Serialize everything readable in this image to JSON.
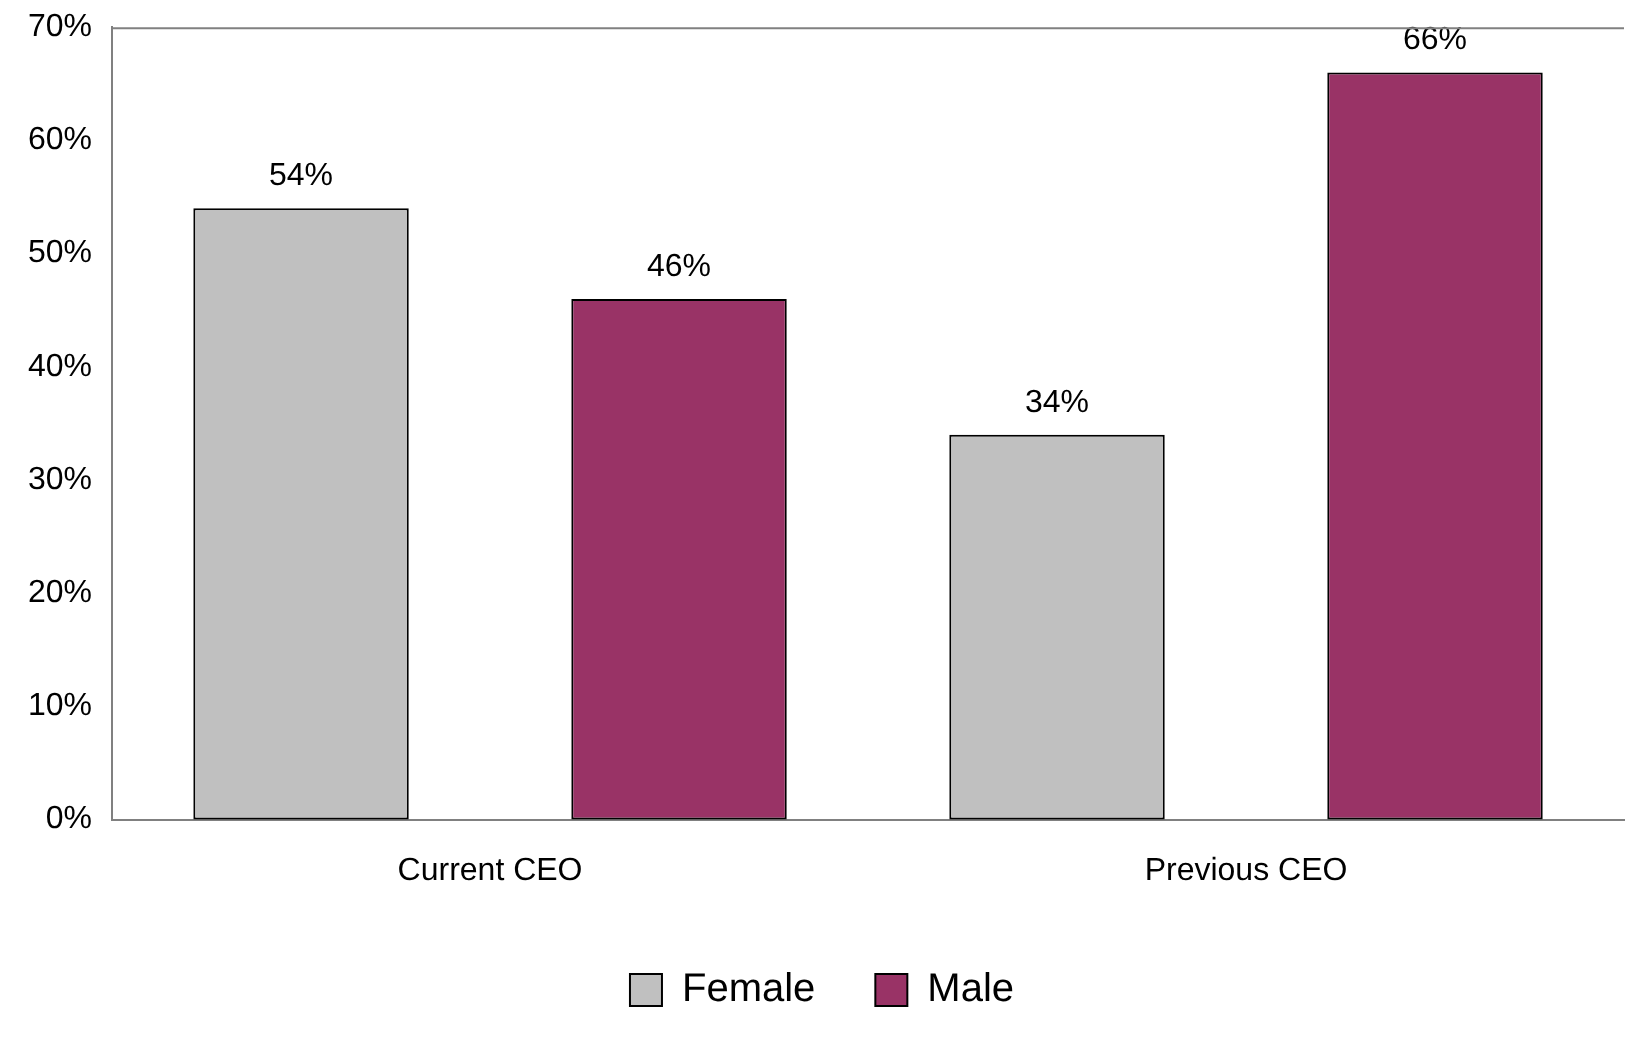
{
  "chart_data": {
    "type": "bar",
    "categories": [
      "Current CEO",
      "Previous CEO"
    ],
    "series": [
      {
        "name": "Female",
        "color": "#c0c0c0",
        "values": [
          54,
          34
        ],
        "value_labels": [
          "54%",
          "34%"
        ]
      },
      {
        "name": "Male",
        "color": "#993366",
        "values": [
          46,
          66
        ],
        "value_labels": [
          "46%",
          "66%"
        ]
      }
    ],
    "ylim": [
      0,
      70
    ],
    "yticks": [
      {
        "value": 0,
        "label": "0%"
      },
      {
        "value": 10,
        "label": "10%"
      },
      {
        "value": 20,
        "label": "20%"
      },
      {
        "value": 30,
        "label": "30%"
      },
      {
        "value": 40,
        "label": "40%"
      },
      {
        "value": 50,
        "label": "50%"
      },
      {
        "value": 60,
        "label": "60%"
      },
      {
        "value": 70,
        "label": "70%"
      }
    ],
    "grid": false,
    "legend": "bottom"
  }
}
